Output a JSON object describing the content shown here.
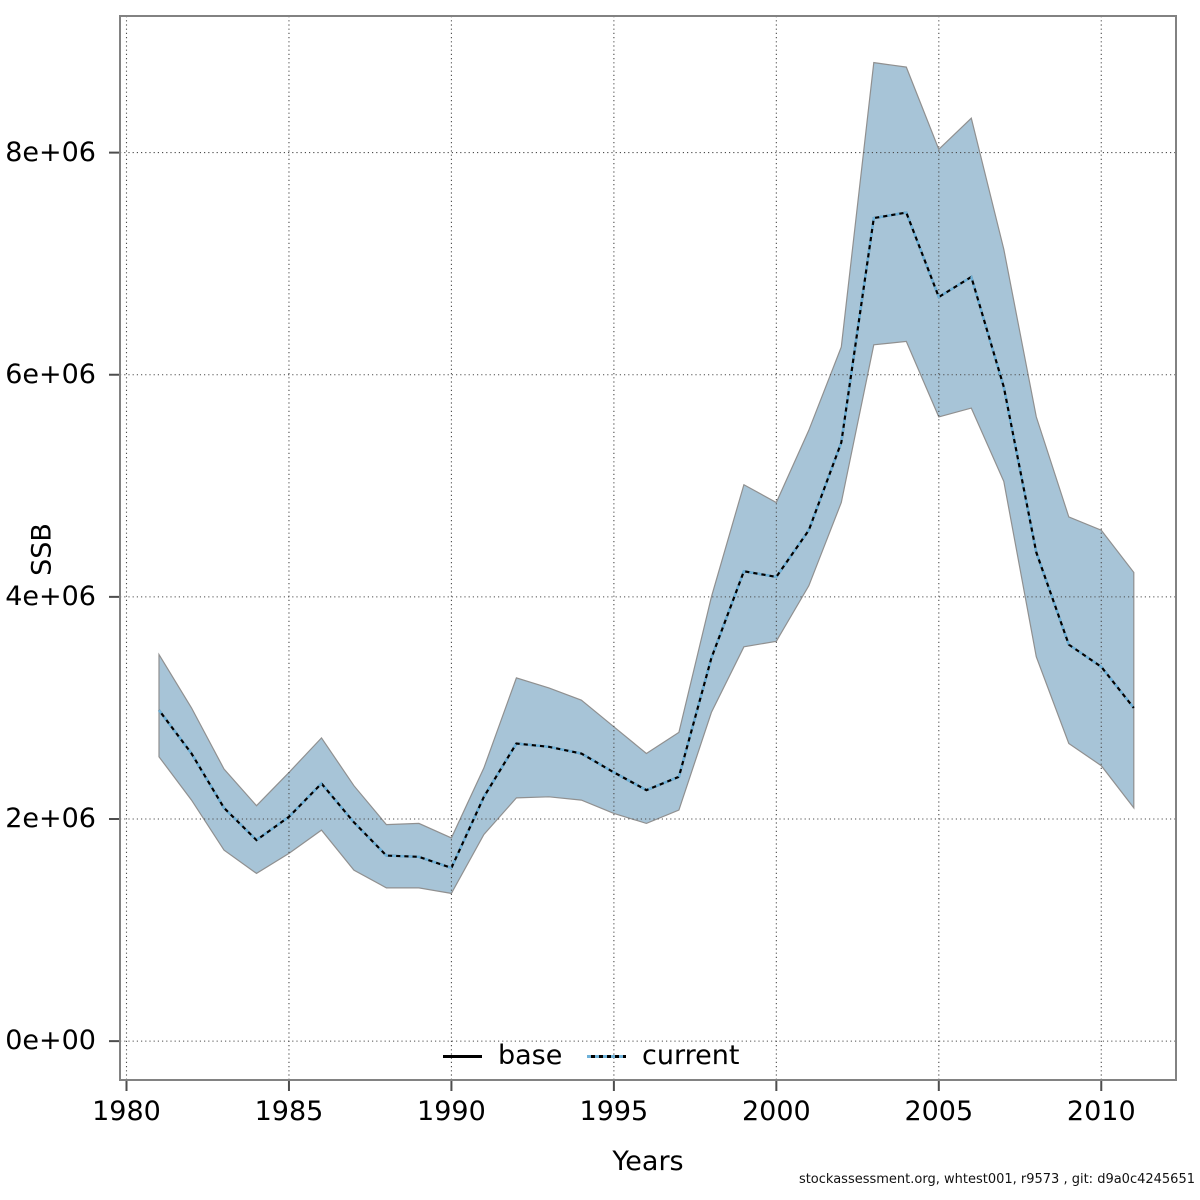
{
  "figure": {
    "caption": "stockassessment.org, whtest001, r9573 , git: d9a0c4245651"
  },
  "legend": {
    "position": "bottom-center",
    "items": [
      {
        "label": "base",
        "style": "solid",
        "color": "#000000"
      },
      {
        "label": "current",
        "style": "dotted",
        "color": "#6fb2d9"
      }
    ]
  },
  "chart_data": {
    "type": "line",
    "title": "",
    "xlabel": "Years",
    "ylabel": "SSB",
    "grid": true,
    "grid_style": "dotted",
    "xlim": [
      1979.8,
      2012.3
    ],
    "ylim": [
      -350000,
      9230000
    ],
    "x_ticks": [
      1980,
      1985,
      1990,
      1995,
      2000,
      2005,
      2010
    ],
    "x_tick_labels": [
      "1980",
      "1985",
      "1990",
      "1995",
      "2000",
      "2005",
      "2010"
    ],
    "y_ticks": [
      0,
      2000000,
      4000000,
      6000000,
      8000000
    ],
    "y_tick_labels": [
      "0e+00",
      "2e+06",
      "4e+06",
      "6e+06",
      "8e+06"
    ],
    "x": [
      1981,
      1982,
      1983,
      1984,
      1985,
      1986,
      1987,
      1988,
      1989,
      1990,
      1991,
      1992,
      1993,
      1994,
      1995,
      1996,
      1997,
      1998,
      1999,
      2000,
      2001,
      2002,
      2003,
      2004,
      2005,
      2006,
      2007,
      2008,
      2009,
      2010,
      2011
    ],
    "series": [
      {
        "name": "base",
        "style": "solid",
        "color": "#000000",
        "values": [
          2980000,
          2590000,
          2100000,
          1810000,
          2020000,
          2320000,
          1970000,
          1670000,
          1660000,
          1560000,
          2200000,
          2680000,
          2650000,
          2590000,
          2420000,
          2260000,
          2380000,
          3450000,
          4230000,
          4180000,
          4600000,
          5390000,
          7410000,
          7460000,
          6700000,
          6880000,
          5890000,
          4400000,
          3570000,
          3370000,
          3000000
        ]
      },
      {
        "name": "current",
        "style": "dotted",
        "color": "#6fb2d9",
        "ci_fill": "#a7c4d7",
        "ci_edge": "#909090",
        "values": [
          2980000,
          2590000,
          2100000,
          1810000,
          2020000,
          2320000,
          1970000,
          1670000,
          1660000,
          1560000,
          2200000,
          2680000,
          2650000,
          2590000,
          2420000,
          2260000,
          2380000,
          3450000,
          4230000,
          4180000,
          4600000,
          5390000,
          7410000,
          7460000,
          6700000,
          6880000,
          5890000,
          4400000,
          3570000,
          3370000,
          3000000
        ],
        "ci_lower": [
          2560000,
          2170000,
          1720000,
          1510000,
          1690000,
          1900000,
          1540000,
          1380000,
          1380000,
          1330000,
          1860000,
          2190000,
          2200000,
          2170000,
          2050000,
          1960000,
          2080000,
          2960000,
          3550000,
          3600000,
          4100000,
          4850000,
          6270000,
          6300000,
          5620000,
          5700000,
          5040000,
          3460000,
          2680000,
          2480000,
          2100000
        ],
        "ci_upper": [
          3480000,
          3000000,
          2450000,
          2120000,
          2420000,
          2730000,
          2300000,
          1950000,
          1960000,
          1830000,
          2460000,
          3270000,
          3180000,
          3070000,
          2830000,
          2590000,
          2780000,
          4000000,
          5010000,
          4850000,
          5500000,
          6250000,
          8810000,
          8770000,
          8030000,
          8310000,
          7130000,
          5620000,
          4720000,
          4600000,
          4220000
        ]
      }
    ],
    "colors": {
      "grid": "#4d4d4d",
      "border": "#828282",
      "tick": "#4d4d4d",
      "background": "#ffffff"
    }
  }
}
